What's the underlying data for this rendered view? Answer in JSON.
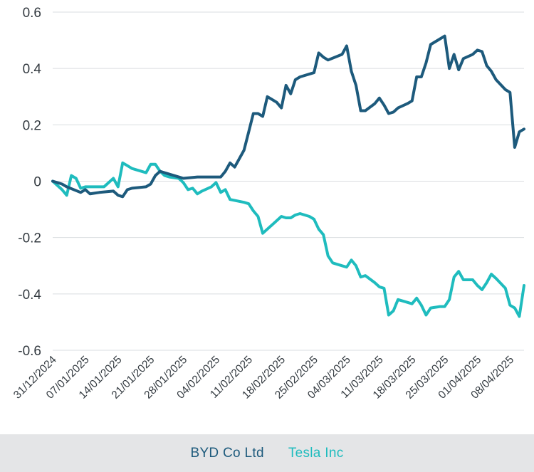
{
  "chart_data": {
    "type": "line",
    "title": "",
    "xlabel": "",
    "ylabel": "",
    "ylim": [
      -0.6,
      0.6
    ],
    "yticks": [
      {
        "value": 0.6,
        "label": "0.6"
      },
      {
        "value": 0.4,
        "label": "0.4"
      },
      {
        "value": 0.2,
        "label": "0.2"
      },
      {
        "value": 0,
        "label": "0"
      },
      {
        "value": -0.2,
        "label": "-0.2"
      },
      {
        "value": -0.4,
        "label": "-0.4"
      },
      {
        "value": -0.6,
        "label": "-0.6"
      }
    ],
    "xlim": [
      "2024-12-31",
      "2025-04-11"
    ],
    "xticks": [
      {
        "date": "2024-12-31",
        "label": "31/12/2024"
      },
      {
        "date": "2025-01-07",
        "label": "07/01/2025"
      },
      {
        "date": "2025-01-14",
        "label": "14/01/2025"
      },
      {
        "date": "2025-01-21",
        "label": "21/01/2025"
      },
      {
        "date": "2025-01-28",
        "label": "28/01/2025"
      },
      {
        "date": "2025-02-04",
        "label": "04/02/2025"
      },
      {
        "date": "2025-02-11",
        "label": "11/02/2025"
      },
      {
        "date": "2025-02-18",
        "label": "18/02/2025"
      },
      {
        "date": "2025-02-25",
        "label": "25/02/2025"
      },
      {
        "date": "2025-03-04",
        "label": "04/03/2025"
      },
      {
        "date": "2025-03-11",
        "label": "11/03/2025"
      },
      {
        "date": "2025-03-18",
        "label": "18/03/2025"
      },
      {
        "date": "2025-03-25",
        "label": "25/03/2025"
      },
      {
        "date": "2025-04-01",
        "label": "01/04/2025"
      },
      {
        "date": "2025-04-08",
        "label": "08/04/2025"
      }
    ],
    "grid": true,
    "legend_position": "bottom",
    "series": [
      {
        "name": "BYD Co Ltd",
        "color": "#1d5a7c",
        "points": [
          [
            "2024-12-31",
            0
          ],
          [
            "2025-01-02",
            -0.01
          ],
          [
            "2025-01-03",
            -0.02
          ],
          [
            "2025-01-06",
            -0.04
          ],
          [
            "2025-01-07",
            -0.03
          ],
          [
            "2025-01-08",
            -0.045
          ],
          [
            "2025-01-10",
            -0.04
          ],
          [
            "2025-01-13",
            -0.035
          ],
          [
            "2025-01-14",
            -0.05
          ],
          [
            "2025-01-15",
            -0.055
          ],
          [
            "2025-01-16",
            -0.03
          ],
          [
            "2025-01-17",
            -0.025
          ],
          [
            "2025-01-20",
            -0.02
          ],
          [
            "2025-01-21",
            -0.01
          ],
          [
            "2025-01-22",
            0.02
          ],
          [
            "2025-01-23",
            0.035
          ],
          [
            "2025-01-24",
            0.03
          ],
          [
            "2025-01-27",
            0.015
          ],
          [
            "2025-01-28",
            0.01
          ],
          [
            "2025-01-31",
            0.015
          ],
          [
            "2025-02-03",
            0.015
          ],
          [
            "2025-02-04",
            0.015
          ],
          [
            "2025-02-05",
            0.015
          ],
          [
            "2025-02-06",
            0.035
          ],
          [
            "2025-02-07",
            0.065
          ],
          [
            "2025-02-08",
            0.05
          ],
          [
            "2025-02-10",
            0.11
          ],
          [
            "2025-02-11",
            0.175
          ],
          [
            "2025-02-12",
            0.24
          ],
          [
            "2025-02-13",
            0.24
          ],
          [
            "2025-02-14",
            0.23
          ],
          [
            "2025-02-15",
            0.3
          ],
          [
            "2025-02-17",
            0.28
          ],
          [
            "2025-02-18",
            0.26
          ],
          [
            "2025-02-19",
            0.34
          ],
          [
            "2025-02-20",
            0.31
          ],
          [
            "2025-02-21",
            0.36
          ],
          [
            "2025-02-22",
            0.37
          ],
          [
            "2025-02-25",
            0.385
          ],
          [
            "2025-02-26",
            0.455
          ],
          [
            "2025-02-27",
            0.44
          ],
          [
            "2025-02-28",
            0.43
          ],
          [
            "2025-03-03",
            0.45
          ],
          [
            "2025-03-04",
            0.48
          ],
          [
            "2025-03-05",
            0.39
          ],
          [
            "2025-03-06",
            0.34
          ],
          [
            "2025-03-07",
            0.25
          ],
          [
            "2025-03-08",
            0.25
          ],
          [
            "2025-03-10",
            0.275
          ],
          [
            "2025-03-11",
            0.295
          ],
          [
            "2025-03-12",
            0.27
          ],
          [
            "2025-03-13",
            0.24
          ],
          [
            "2025-03-14",
            0.245
          ],
          [
            "2025-03-15",
            0.26
          ],
          [
            "2025-03-17",
            0.275
          ],
          [
            "2025-03-18",
            0.285
          ],
          [
            "2025-03-19",
            0.37
          ],
          [
            "2025-03-20",
            0.37
          ],
          [
            "2025-03-21",
            0.42
          ],
          [
            "2025-03-22",
            0.485
          ],
          [
            "2025-03-24",
            0.505
          ],
          [
            "2025-03-25",
            0.515
          ],
          [
            "2025-03-26",
            0.4
          ],
          [
            "2025-03-27",
            0.45
          ],
          [
            "2025-03-28",
            0.395
          ],
          [
            "2025-03-29",
            0.435
          ],
          [
            "2025-03-31",
            0.45
          ],
          [
            "2025-04-01",
            0.465
          ],
          [
            "2025-04-02",
            0.46
          ],
          [
            "2025-04-03",
            0.41
          ],
          [
            "2025-04-04",
            0.39
          ],
          [
            "2025-04-05",
            0.36
          ],
          [
            "2025-04-07",
            0.325
          ],
          [
            "2025-04-08",
            0.315
          ],
          [
            "2025-04-09",
            0.12
          ],
          [
            "2025-04-10",
            0.175
          ],
          [
            "2025-04-11",
            0.185
          ]
        ]
      },
      {
        "name": "Tesla Inc",
        "color": "#1fbcbe",
        "points": [
          [
            "2024-12-31",
            0
          ],
          [
            "2025-01-02",
            -0.03
          ],
          [
            "2025-01-03",
            -0.05
          ],
          [
            "2025-01-04",
            0.02
          ],
          [
            "2025-01-05",
            0.01
          ],
          [
            "2025-01-06",
            -0.025
          ],
          [
            "2025-01-07",
            -0.02
          ],
          [
            "2025-01-10",
            -0.02
          ],
          [
            "2025-01-11",
            -0.02
          ],
          [
            "2025-01-13",
            0.01
          ],
          [
            "2025-01-14",
            -0.02
          ],
          [
            "2025-01-15",
            0.065
          ],
          [
            "2025-01-16",
            0.055
          ],
          [
            "2025-01-17",
            0.045
          ],
          [
            "2025-01-20",
            0.03
          ],
          [
            "2025-01-21",
            0.06
          ],
          [
            "2025-01-22",
            0.06
          ],
          [
            "2025-01-23",
            0.035
          ],
          [
            "2025-01-24",
            0.02
          ],
          [
            "2025-01-25",
            0.015
          ],
          [
            "2025-01-27",
            0.01
          ],
          [
            "2025-01-28",
            -0.005
          ],
          [
            "2025-01-29",
            -0.03
          ],
          [
            "2025-01-30",
            -0.025
          ],
          [
            "2025-01-31",
            -0.045
          ],
          [
            "2025-02-01",
            -0.035
          ],
          [
            "2025-02-03",
            -0.02
          ],
          [
            "2025-02-04",
            -0.005
          ],
          [
            "2025-02-05",
            -0.04
          ],
          [
            "2025-02-06",
            -0.03
          ],
          [
            "2025-02-07",
            -0.065
          ],
          [
            "2025-02-10",
            -0.075
          ],
          [
            "2025-02-11",
            -0.08
          ],
          [
            "2025-02-12",
            -0.105
          ],
          [
            "2025-02-13",
            -0.125
          ],
          [
            "2025-02-14",
            -0.185
          ],
          [
            "2025-02-16",
            -0.155
          ],
          [
            "2025-02-18",
            -0.125
          ],
          [
            "2025-02-19",
            -0.13
          ],
          [
            "2025-02-20",
            -0.13
          ],
          [
            "2025-02-21",
            -0.12
          ],
          [
            "2025-02-22",
            -0.115
          ],
          [
            "2025-02-24",
            -0.125
          ],
          [
            "2025-02-25",
            -0.135
          ],
          [
            "2025-02-26",
            -0.17
          ],
          [
            "2025-02-27",
            -0.19
          ],
          [
            "2025-02-28",
            -0.265
          ],
          [
            "2025-03-01",
            -0.29
          ],
          [
            "2025-03-03",
            -0.3
          ],
          [
            "2025-03-04",
            -0.305
          ],
          [
            "2025-03-05",
            -0.28
          ],
          [
            "2025-03-06",
            -0.3
          ],
          [
            "2025-03-07",
            -0.34
          ],
          [
            "2025-03-08",
            -0.335
          ],
          [
            "2025-03-10",
            -0.36
          ],
          [
            "2025-03-11",
            -0.375
          ],
          [
            "2025-03-12",
            -0.38
          ],
          [
            "2025-03-13",
            -0.475
          ],
          [
            "2025-03-14",
            -0.46
          ],
          [
            "2025-03-15",
            -0.42
          ],
          [
            "2025-03-17",
            -0.43
          ],
          [
            "2025-03-18",
            -0.435
          ],
          [
            "2025-03-19",
            -0.415
          ],
          [
            "2025-03-20",
            -0.44
          ],
          [
            "2025-03-21",
            -0.475
          ],
          [
            "2025-03-22",
            -0.45
          ],
          [
            "2025-03-24",
            -0.445
          ],
          [
            "2025-03-25",
            -0.445
          ],
          [
            "2025-03-26",
            -0.42
          ],
          [
            "2025-03-27",
            -0.34
          ],
          [
            "2025-03-28",
            -0.32
          ],
          [
            "2025-03-29",
            -0.35
          ],
          [
            "2025-03-31",
            -0.35
          ],
          [
            "2025-04-01",
            -0.37
          ],
          [
            "2025-04-02",
            -0.385
          ],
          [
            "2025-04-03",
            -0.36
          ],
          [
            "2025-04-04",
            -0.33
          ],
          [
            "2025-04-05",
            -0.345
          ],
          [
            "2025-04-07",
            -0.38
          ],
          [
            "2025-04-08",
            -0.44
          ],
          [
            "2025-04-09",
            -0.45
          ],
          [
            "2025-04-10",
            -0.48
          ],
          [
            "2025-04-11",
            -0.37
          ]
        ]
      }
    ]
  }
}
